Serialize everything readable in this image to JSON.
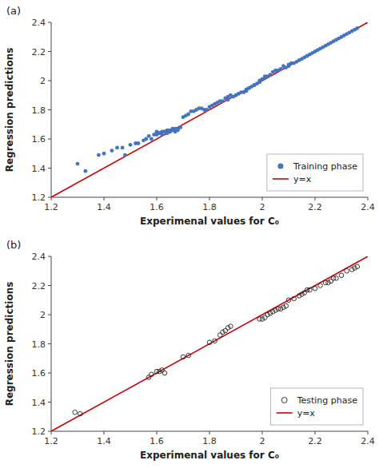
{
  "chart_data": [
    {
      "type": "scatter",
      "title": "(a)",
      "x_label": "Experimenal values for C₀",
      "y_label": "Regression predictions",
      "xlim": [
        1.2,
        2.4
      ],
      "ylim": [
        1.2,
        2.4
      ],
      "xticks": [
        1.2,
        1.4,
        1.6,
        1.8,
        2,
        2.2,
        2.4
      ],
      "yticks": [
        1.2,
        1.4,
        1.6,
        1.8,
        2,
        2.2,
        2.4
      ],
      "grid": false,
      "legend": "lower right",
      "series": [
        {
          "name": "Training phase",
          "type": "scatter",
          "marker": "circle",
          "color": "#4472c4",
          "x": [
            1.3,
            1.33,
            1.38,
            1.4,
            1.43,
            1.45,
            1.47,
            1.48,
            1.5,
            1.52,
            1.53,
            1.55,
            1.56,
            1.57,
            1.58,
            1.59,
            1.6,
            1.6,
            1.61,
            1.62,
            1.62,
            1.63,
            1.63,
            1.64,
            1.65,
            1.65,
            1.66,
            1.66,
            1.67,
            1.67,
            1.68,
            1.68,
            1.69,
            1.6,
            1.61,
            1.63,
            1.64,
            1.65,
            1.67,
            1.68,
            1.7,
            1.71,
            1.72,
            1.73,
            1.74,
            1.75,
            1.76,
            1.77,
            1.78,
            1.79,
            1.8,
            1.81,
            1.82,
            1.83,
            1.84,
            1.85,
            1.86,
            1.87,
            1.87,
            1.88,
            1.89,
            1.9,
            1.91,
            1.92,
            1.93,
            1.94,
            1.94,
            1.95,
            1.95,
            1.96,
            1.97,
            1.97,
            1.98,
            1.99,
            1.99,
            2.0,
            2.0,
            2.01,
            2.01,
            2.02,
            2.03,
            2.04,
            2.05,
            2.06,
            2.07,
            2.08,
            2.09,
            2.1,
            2.1,
            2.11,
            2.12,
            2.13,
            2.14,
            2.15,
            2.16,
            2.17,
            2.18,
            2.19,
            2.2,
            2.21,
            2.22,
            2.23,
            2.24,
            2.25,
            2.26,
            2.27,
            2.28,
            2.29,
            2.3,
            2.31,
            2.32,
            2.33,
            2.34,
            2.35,
            2.36
          ],
          "values": [
            1.43,
            1.38,
            1.49,
            1.5,
            1.52,
            1.54,
            1.54,
            1.49,
            1.56,
            1.57,
            1.57,
            1.59,
            1.6,
            1.62,
            1.6,
            1.63,
            1.64,
            1.65,
            1.64,
            1.63,
            1.65,
            1.65,
            1.65,
            1.66,
            1.65,
            1.66,
            1.66,
            1.67,
            1.67,
            1.66,
            1.67,
            1.67,
            1.68,
            1.63,
            1.64,
            1.65,
            1.64,
            1.65,
            1.65,
            1.66,
            1.75,
            1.76,
            1.77,
            1.79,
            1.79,
            1.8,
            1.81,
            1.81,
            1.8,
            1.8,
            1.82,
            1.83,
            1.84,
            1.85,
            1.86,
            1.86,
            1.88,
            1.87,
            1.89,
            1.9,
            1.89,
            1.9,
            1.91,
            1.92,
            1.92,
            1.93,
            1.94,
            1.95,
            1.95,
            1.96,
            1.97,
            1.97,
            1.98,
            1.99,
            2.0,
            2.01,
            2.01,
            2.02,
            2.03,
            2.03,
            2.04,
            2.06,
            2.07,
            2.07,
            2.08,
            2.1,
            2.09,
            2.1,
            2.11,
            2.12,
            2.12,
            2.13,
            2.14,
            2.15,
            2.16,
            2.17,
            2.18,
            2.19,
            2.2,
            2.21,
            2.22,
            2.23,
            2.24,
            2.25,
            2.26,
            2.27,
            2.28,
            2.29,
            2.3,
            2.31,
            2.32,
            2.33,
            2.34,
            2.35,
            2.36
          ]
        },
        {
          "name": "y=x",
          "type": "line",
          "line_style": "solid",
          "color": "#cc0000",
          "x": [
            1.2,
            2.4
          ],
          "values": [
            1.2,
            2.4
          ]
        }
      ]
    },
    {
      "type": "scatter",
      "title": "(b)",
      "x_label": "Experimenal values for C₀",
      "y_label": "Regression predictions",
      "xlim": [
        1.2,
        2.4
      ],
      "ylim": [
        1.2,
        2.4
      ],
      "xticks": [
        1.2,
        1.4,
        1.6,
        1.8,
        2,
        2.2,
        2.4
      ],
      "yticks": [
        1.2,
        1.4,
        1.6,
        1.8,
        2,
        2.2,
        2.4
      ],
      "grid": false,
      "legend": "lower right",
      "series": [
        {
          "name": "Testing phase",
          "type": "scatter",
          "marker": "open-circle",
          "color": "#222222",
          "x": [
            1.29,
            1.31,
            1.57,
            1.58,
            1.6,
            1.61,
            1.62,
            1.63,
            1.7,
            1.72,
            1.8,
            1.82,
            1.84,
            1.85,
            1.86,
            1.87,
            1.88,
            1.99,
            2.0,
            2.01,
            2.02,
            2.03,
            2.04,
            2.05,
            2.06,
            2.07,
            2.08,
            2.09,
            2.1,
            2.12,
            2.14,
            2.15,
            2.16,
            2.17,
            2.18,
            2.2,
            2.22,
            2.24,
            2.25,
            2.26,
            2.27,
            2.28,
            2.3,
            2.32,
            2.34,
            2.35,
            2.36
          ],
          "values": [
            1.33,
            1.32,
            1.57,
            1.59,
            1.61,
            1.61,
            1.62,
            1.6,
            1.71,
            1.72,
            1.81,
            1.82,
            1.86,
            1.88,
            1.89,
            1.91,
            1.92,
            1.97,
            1.97,
            1.98,
            2.0,
            2.01,
            2.02,
            2.03,
            2.04,
            2.04,
            2.05,
            2.06,
            2.1,
            2.11,
            2.13,
            2.14,
            2.15,
            2.17,
            2.17,
            2.18,
            2.2,
            2.22,
            2.22,
            2.23,
            2.25,
            2.25,
            2.27,
            2.3,
            2.31,
            2.32,
            2.33
          ]
        },
        {
          "name": "y=x",
          "type": "line",
          "line_style": "solid",
          "color": "#cc0000",
          "x": [
            1.2,
            2.4
          ],
          "values": [
            1.2,
            2.4
          ]
        }
      ]
    }
  ]
}
